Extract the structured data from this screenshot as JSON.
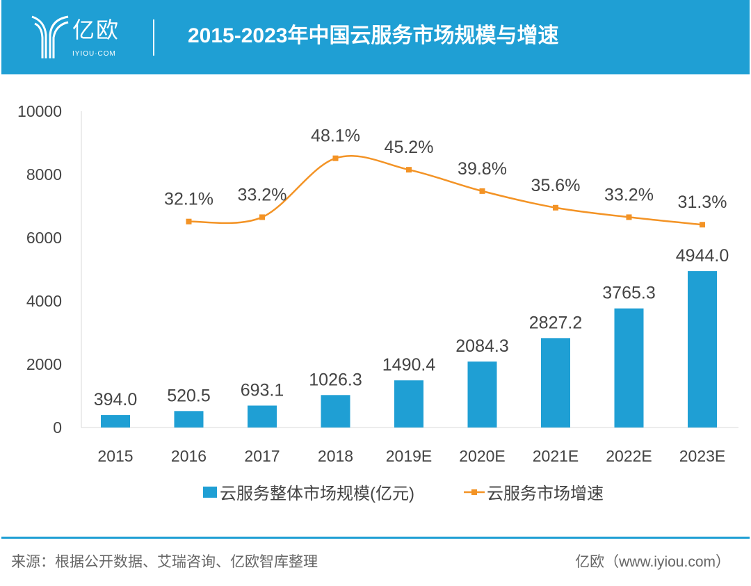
{
  "header": {
    "logo_cn": "亿欧",
    "logo_en": "IYIOU·COM",
    "title": "2015-2023年中国云服务市场规模与增速"
  },
  "chart_data": {
    "type": "bar+line",
    "categories": [
      "2015",
      "2016",
      "2017",
      "2018",
      "2019E",
      "2020E",
      "2021E",
      "2022E",
      "2023E"
    ],
    "series": [
      {
        "name": "云服务整体市场规模(亿元)",
        "type": "bar",
        "color": "#1f9fd4",
        "values": [
          394.0,
          520.5,
          693.1,
          1026.3,
          1490.4,
          2084.3,
          2827.2,
          3765.3,
          4944.0
        ],
        "labels": [
          "394.0",
          "520.5",
          "693.1",
          "1026.3",
          "1490.4",
          "2084.3",
          "2827.2",
          "3765.3",
          "4944.0"
        ]
      },
      {
        "name": "云服务市场增速",
        "type": "line",
        "color": "#f39325",
        "values": [
          null,
          32.1,
          33.2,
          48.1,
          45.2,
          39.8,
          35.6,
          33.2,
          31.3
        ],
        "labels": [
          "",
          "32.1%",
          "33.2%",
          "48.1%",
          "45.2%",
          "39.8%",
          "35.6%",
          "33.2%",
          "31.3%"
        ]
      }
    ],
    "ylim": [
      0,
      10000
    ],
    "yticks": [
      "0",
      "2000",
      "4000",
      "6000",
      "8000",
      "10000"
    ],
    "y2lim": [
      -20,
      60
    ],
    "legend": "bottom",
    "grid": false
  },
  "footer": {
    "source": "来源：根据公开数据、艾瑞咨询、亿欧智库整理",
    "site": "亿欧（www.iyiou.com）"
  }
}
